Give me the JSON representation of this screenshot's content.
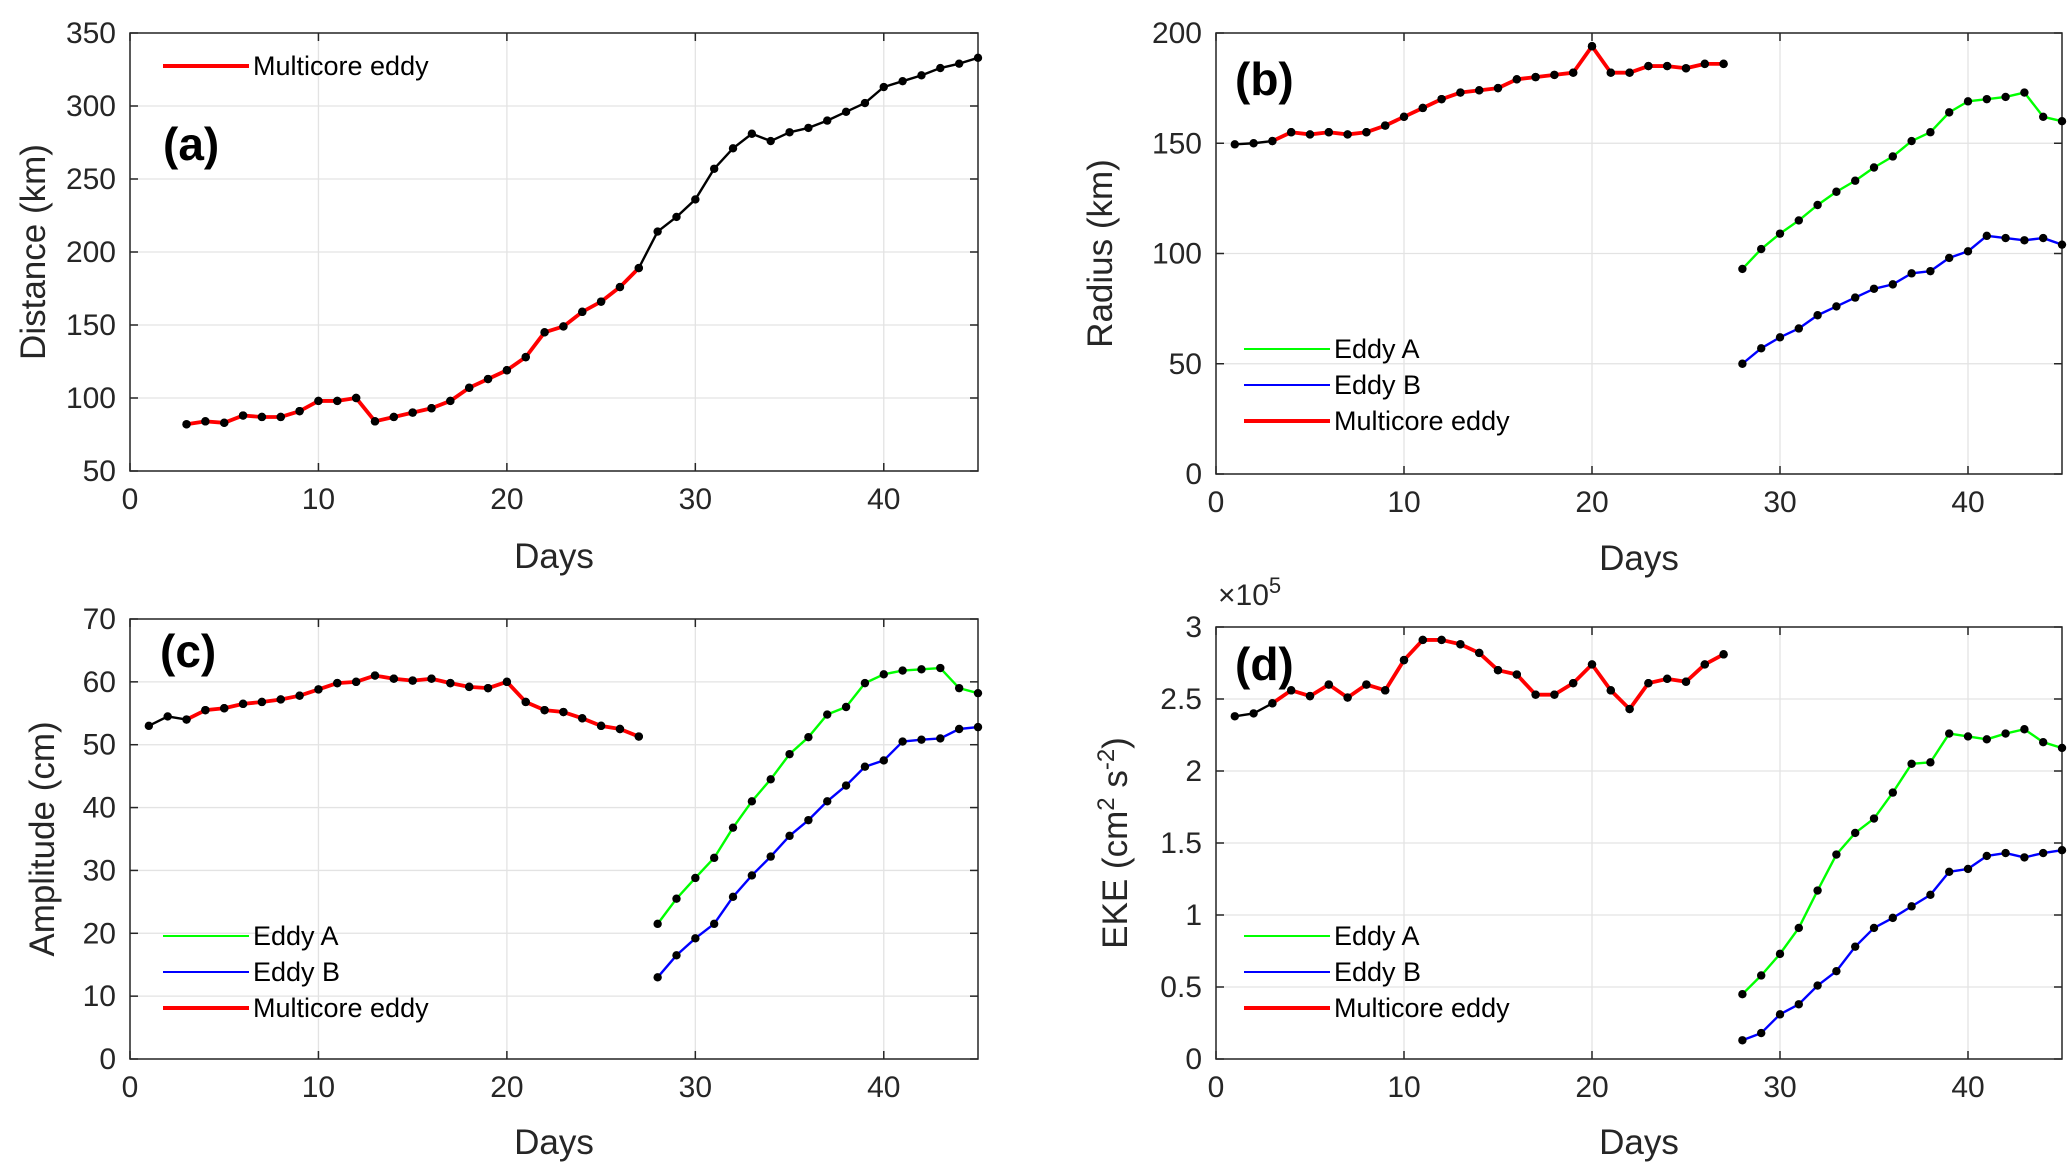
{
  "chart_data": [
    {
      "panel": "(a)",
      "type": "line",
      "xlabel": "Days",
      "ylabel": "Distance (km)",
      "xlim": [
        0,
        45
      ],
      "ylim": [
        50,
        350
      ],
      "xticks": [
        "0",
        "10",
        "20",
        "30",
        "40"
      ],
      "yticks": [
        "50",
        "100",
        "150",
        "200",
        "250",
        "300",
        "350"
      ],
      "legend_position": "top-left",
      "legend": [
        "Multicore eddy"
      ],
      "series": [
        {
          "name": "Track (black)",
          "color": "#000000",
          "legend": false,
          "x": [
            3,
            4,
            5,
            6,
            7,
            8,
            9,
            10,
            11,
            12,
            13,
            14,
            15,
            16,
            17,
            18,
            19,
            20,
            21,
            22,
            23,
            24,
            25,
            26,
            27,
            28,
            29,
            30,
            31,
            32,
            33,
            34,
            35,
            36,
            37,
            38,
            39,
            40,
            41,
            42,
            43,
            44,
            45
          ],
          "values": [
            82,
            84,
            83,
            88,
            87,
            87,
            91,
            98,
            98,
            100,
            84,
            87,
            90,
            93,
            98,
            107,
            113,
            119,
            128,
            145,
            149,
            159,
            166,
            176,
            189,
            214,
            224,
            236,
            257,
            271,
            281,
            276,
            282,
            285,
            290,
            296,
            302,
            313,
            317,
            321,
            326,
            329,
            333
          ]
        },
        {
          "name": "Multicore eddy",
          "color": "#ff0000",
          "legend": true,
          "x": [
            3,
            4,
            5,
            6,
            7,
            8,
            9,
            10,
            11,
            12,
            13,
            14,
            15,
            16,
            17,
            18,
            19,
            20,
            21,
            22,
            23,
            24,
            25,
            26,
            27
          ],
          "values": [
            82,
            84,
            83,
            88,
            87,
            87,
            91,
            98,
            98,
            100,
            84,
            87,
            90,
            93,
            98,
            107,
            113,
            119,
            128,
            145,
            149,
            159,
            166,
            176,
            189
          ]
        }
      ]
    },
    {
      "panel": "(b)",
      "type": "line",
      "xlabel": "Days",
      "ylabel": "Radius (km)",
      "xlim": [
        0,
        45
      ],
      "ylim": [
        0,
        200
      ],
      "xticks": [
        "0",
        "10",
        "20",
        "30",
        "40"
      ],
      "yticks": [
        "0",
        "50",
        "100",
        "150",
        "200"
      ],
      "legend_position": "bottom-left",
      "legend": [
        "Eddy A",
        "Eddy B",
        "Multicore eddy"
      ],
      "series": [
        {
          "name": "Track (black)",
          "color": "#000000",
          "legend": false,
          "x": [
            1,
            2,
            3,
            4,
            5,
            6,
            7,
            8,
            9,
            10,
            11,
            12,
            13,
            14,
            15,
            16,
            17,
            18,
            19,
            20,
            21,
            22,
            23,
            24,
            25,
            26,
            27
          ],
          "values": [
            149.5,
            150,
            151,
            155,
            154,
            155,
            154,
            155,
            158,
            162,
            166,
            170,
            173,
            174,
            175,
            179,
            180,
            181,
            182,
            194,
            182,
            182,
            185,
            185,
            184,
            186,
            186
          ]
        },
        {
          "name": "Multicore eddy",
          "color": "#ff0000",
          "legend": true,
          "x": [
            3,
            4,
            5,
            6,
            7,
            8,
            9,
            10,
            11,
            12,
            13,
            14,
            15,
            16,
            17,
            18,
            19,
            20,
            21,
            22,
            23,
            24,
            25,
            26,
            27
          ],
          "values": [
            151,
            155,
            154,
            155,
            154,
            155,
            158,
            162,
            166,
            170,
            173,
            174,
            175,
            179,
            180,
            181,
            182,
            194,
            182,
            182,
            185,
            185,
            184,
            186,
            186
          ]
        },
        {
          "name": "Eddy A",
          "color": "#00ff00",
          "legend": true,
          "x": [
            28,
            29,
            30,
            31,
            32,
            33,
            34,
            35,
            36,
            37,
            38,
            39,
            40,
            41,
            42,
            43,
            44,
            45
          ],
          "values": [
            93,
            102,
            109,
            115,
            122,
            128,
            133,
            139,
            144,
            151,
            155,
            164,
            169,
            170,
            171,
            173,
            162,
            160
          ]
        },
        {
          "name": "Eddy B",
          "color": "#0000ff",
          "legend": true,
          "x": [
            28,
            29,
            30,
            31,
            32,
            33,
            34,
            35,
            36,
            37,
            38,
            39,
            40,
            41,
            42,
            43,
            44,
            45
          ],
          "values": [
            50,
            57,
            62,
            66,
            72,
            76,
            80,
            84,
            86,
            91,
            92,
            98,
            101,
            108,
            107,
            106,
            107,
            104
          ]
        }
      ]
    },
    {
      "panel": "(c)",
      "type": "line",
      "xlabel": "Days",
      "ylabel": "Amplitude (cm)",
      "xlim": [
        0,
        45
      ],
      "ylim": [
        0,
        70
      ],
      "xticks": [
        "0",
        "10",
        "20",
        "30",
        "40"
      ],
      "yticks": [
        "0",
        "10",
        "20",
        "30",
        "40",
        "50",
        "60",
        "70"
      ],
      "legend_position": "bottom-left",
      "legend": [
        "Eddy A",
        "Eddy B",
        "Multicore eddy"
      ],
      "series": [
        {
          "name": "Track (black)",
          "color": "#000000",
          "legend": false,
          "x": [
            1,
            2,
            3,
            4,
            5,
            6,
            7,
            8,
            9,
            10,
            11,
            12,
            13,
            14,
            15,
            16,
            17,
            18,
            19,
            20,
            21,
            22,
            23,
            24,
            25,
            26,
            27
          ],
          "values": [
            53,
            54.5,
            54,
            55.5,
            55.8,
            56.5,
            56.8,
            57.2,
            57.8,
            58.8,
            59.8,
            60,
            61,
            60.5,
            60.2,
            60.5,
            59.8,
            59.2,
            59,
            60,
            56.8,
            55.5,
            55.2,
            54.2,
            53,
            52.5,
            51.3
          ]
        },
        {
          "name": "Multicore eddy",
          "color": "#ff0000",
          "legend": true,
          "x": [
            3,
            4,
            5,
            6,
            7,
            8,
            9,
            10,
            11,
            12,
            13,
            14,
            15,
            16,
            17,
            18,
            19,
            20,
            21,
            22,
            23,
            24,
            25,
            26,
            27
          ],
          "values": [
            54,
            55.5,
            55.8,
            56.5,
            56.8,
            57.2,
            57.8,
            58.8,
            59.8,
            60,
            61,
            60.5,
            60.2,
            60.5,
            59.8,
            59.2,
            59,
            60,
            56.8,
            55.5,
            55.2,
            54.2,
            53,
            52.5,
            51.3
          ]
        },
        {
          "name": "Eddy A",
          "color": "#00ff00",
          "legend": true,
          "x": [
            28,
            29,
            30,
            31,
            32,
            33,
            34,
            35,
            36,
            37,
            38,
            39,
            40,
            41,
            42,
            43,
            44,
            45
          ],
          "values": [
            21.5,
            25.5,
            28.8,
            32,
            36.8,
            41,
            44.5,
            48.5,
            51.2,
            54.8,
            56,
            59.8,
            61.2,
            61.8,
            62,
            62.2,
            59,
            58.2
          ]
        },
        {
          "name": "Eddy B",
          "color": "#0000ff",
          "legend": true,
          "x": [
            28,
            29,
            30,
            31,
            32,
            33,
            34,
            35,
            36,
            37,
            38,
            39,
            40,
            41,
            42,
            43,
            44,
            45
          ],
          "values": [
            13,
            16.5,
            19.2,
            21.5,
            25.8,
            29.2,
            32.2,
            35.5,
            38,
            41,
            43.5,
            46.5,
            47.5,
            50.5,
            50.8,
            51,
            52.5,
            52.8
          ]
        }
      ]
    },
    {
      "panel": "(d)",
      "type": "line",
      "xlabel": "Days",
      "ylabel": "EKE (cm² s⁻²)",
      "ylabel_parts": [
        "EKE (cm",
        "2",
        " s",
        "-2",
        ")"
      ],
      "ymultiplier": "×10",
      "ymultiplier_exp": "5",
      "xlim": [
        0,
        45
      ],
      "ylim": [
        0,
        3
      ],
      "xticks": [
        "0",
        "10",
        "20",
        "30",
        "40"
      ],
      "yticks": [
        "0",
        "0.5",
        "1",
        "1.5",
        "2",
        "2.5",
        "3"
      ],
      "legend_position": "bottom-left",
      "legend": [
        "Eddy A",
        "Eddy B",
        "Multicore eddy"
      ],
      "series": [
        {
          "name": "Track (black)",
          "color": "#000000",
          "legend": false,
          "x": [
            1,
            2,
            3,
            4,
            5,
            6,
            7,
            8,
            9,
            10,
            11,
            12,
            13,
            14,
            15,
            16,
            17,
            18,
            19,
            20,
            21,
            22,
            23,
            24,
            25,
            26,
            27
          ],
          "values": [
            2.38,
            2.4,
            2.47,
            2.56,
            2.52,
            2.6,
            2.51,
            2.6,
            2.56,
            2.77,
            2.91,
            2.91,
            2.88,
            2.82,
            2.7,
            2.67,
            2.53,
            2.53,
            2.61,
            2.74,
            2.56,
            2.43,
            2.61,
            2.64,
            2.62,
            2.74,
            2.81
          ]
        },
        {
          "name": "Multicore eddy",
          "color": "#ff0000",
          "legend": true,
          "x": [
            3,
            4,
            5,
            6,
            7,
            8,
            9,
            10,
            11,
            12,
            13,
            14,
            15,
            16,
            17,
            18,
            19,
            20,
            21,
            22,
            23,
            24,
            25,
            26,
            27
          ],
          "values": [
            2.47,
            2.56,
            2.52,
            2.6,
            2.51,
            2.6,
            2.56,
            2.77,
            2.91,
            2.91,
            2.88,
            2.82,
            2.7,
            2.67,
            2.53,
            2.53,
            2.61,
            2.74,
            2.56,
            2.43,
            2.61,
            2.64,
            2.62,
            2.74,
            2.81
          ]
        },
        {
          "name": "Eddy A",
          "color": "#00ff00",
          "legend": true,
          "x": [
            28,
            29,
            30,
            31,
            32,
            33,
            34,
            35,
            36,
            37,
            38,
            39,
            40,
            41,
            42,
            43,
            44,
            45
          ],
          "values": [
            0.45,
            0.58,
            0.73,
            0.91,
            1.17,
            1.42,
            1.57,
            1.67,
            1.85,
            2.05,
            2.06,
            2.26,
            2.24,
            2.22,
            2.26,
            2.29,
            2.2,
            2.16
          ]
        },
        {
          "name": "Eddy B",
          "color": "#0000ff",
          "legend": true,
          "x": [
            28,
            29,
            30,
            31,
            32,
            33,
            34,
            35,
            36,
            37,
            38,
            39,
            40,
            41,
            42,
            43,
            44,
            45
          ],
          "values": [
            0.13,
            0.18,
            0.31,
            0.38,
            0.51,
            0.61,
            0.78,
            0.91,
            0.98,
            1.06,
            1.14,
            1.3,
            1.32,
            1.41,
            1.43,
            1.4,
            1.43,
            1.45
          ]
        }
      ]
    }
  ]
}
